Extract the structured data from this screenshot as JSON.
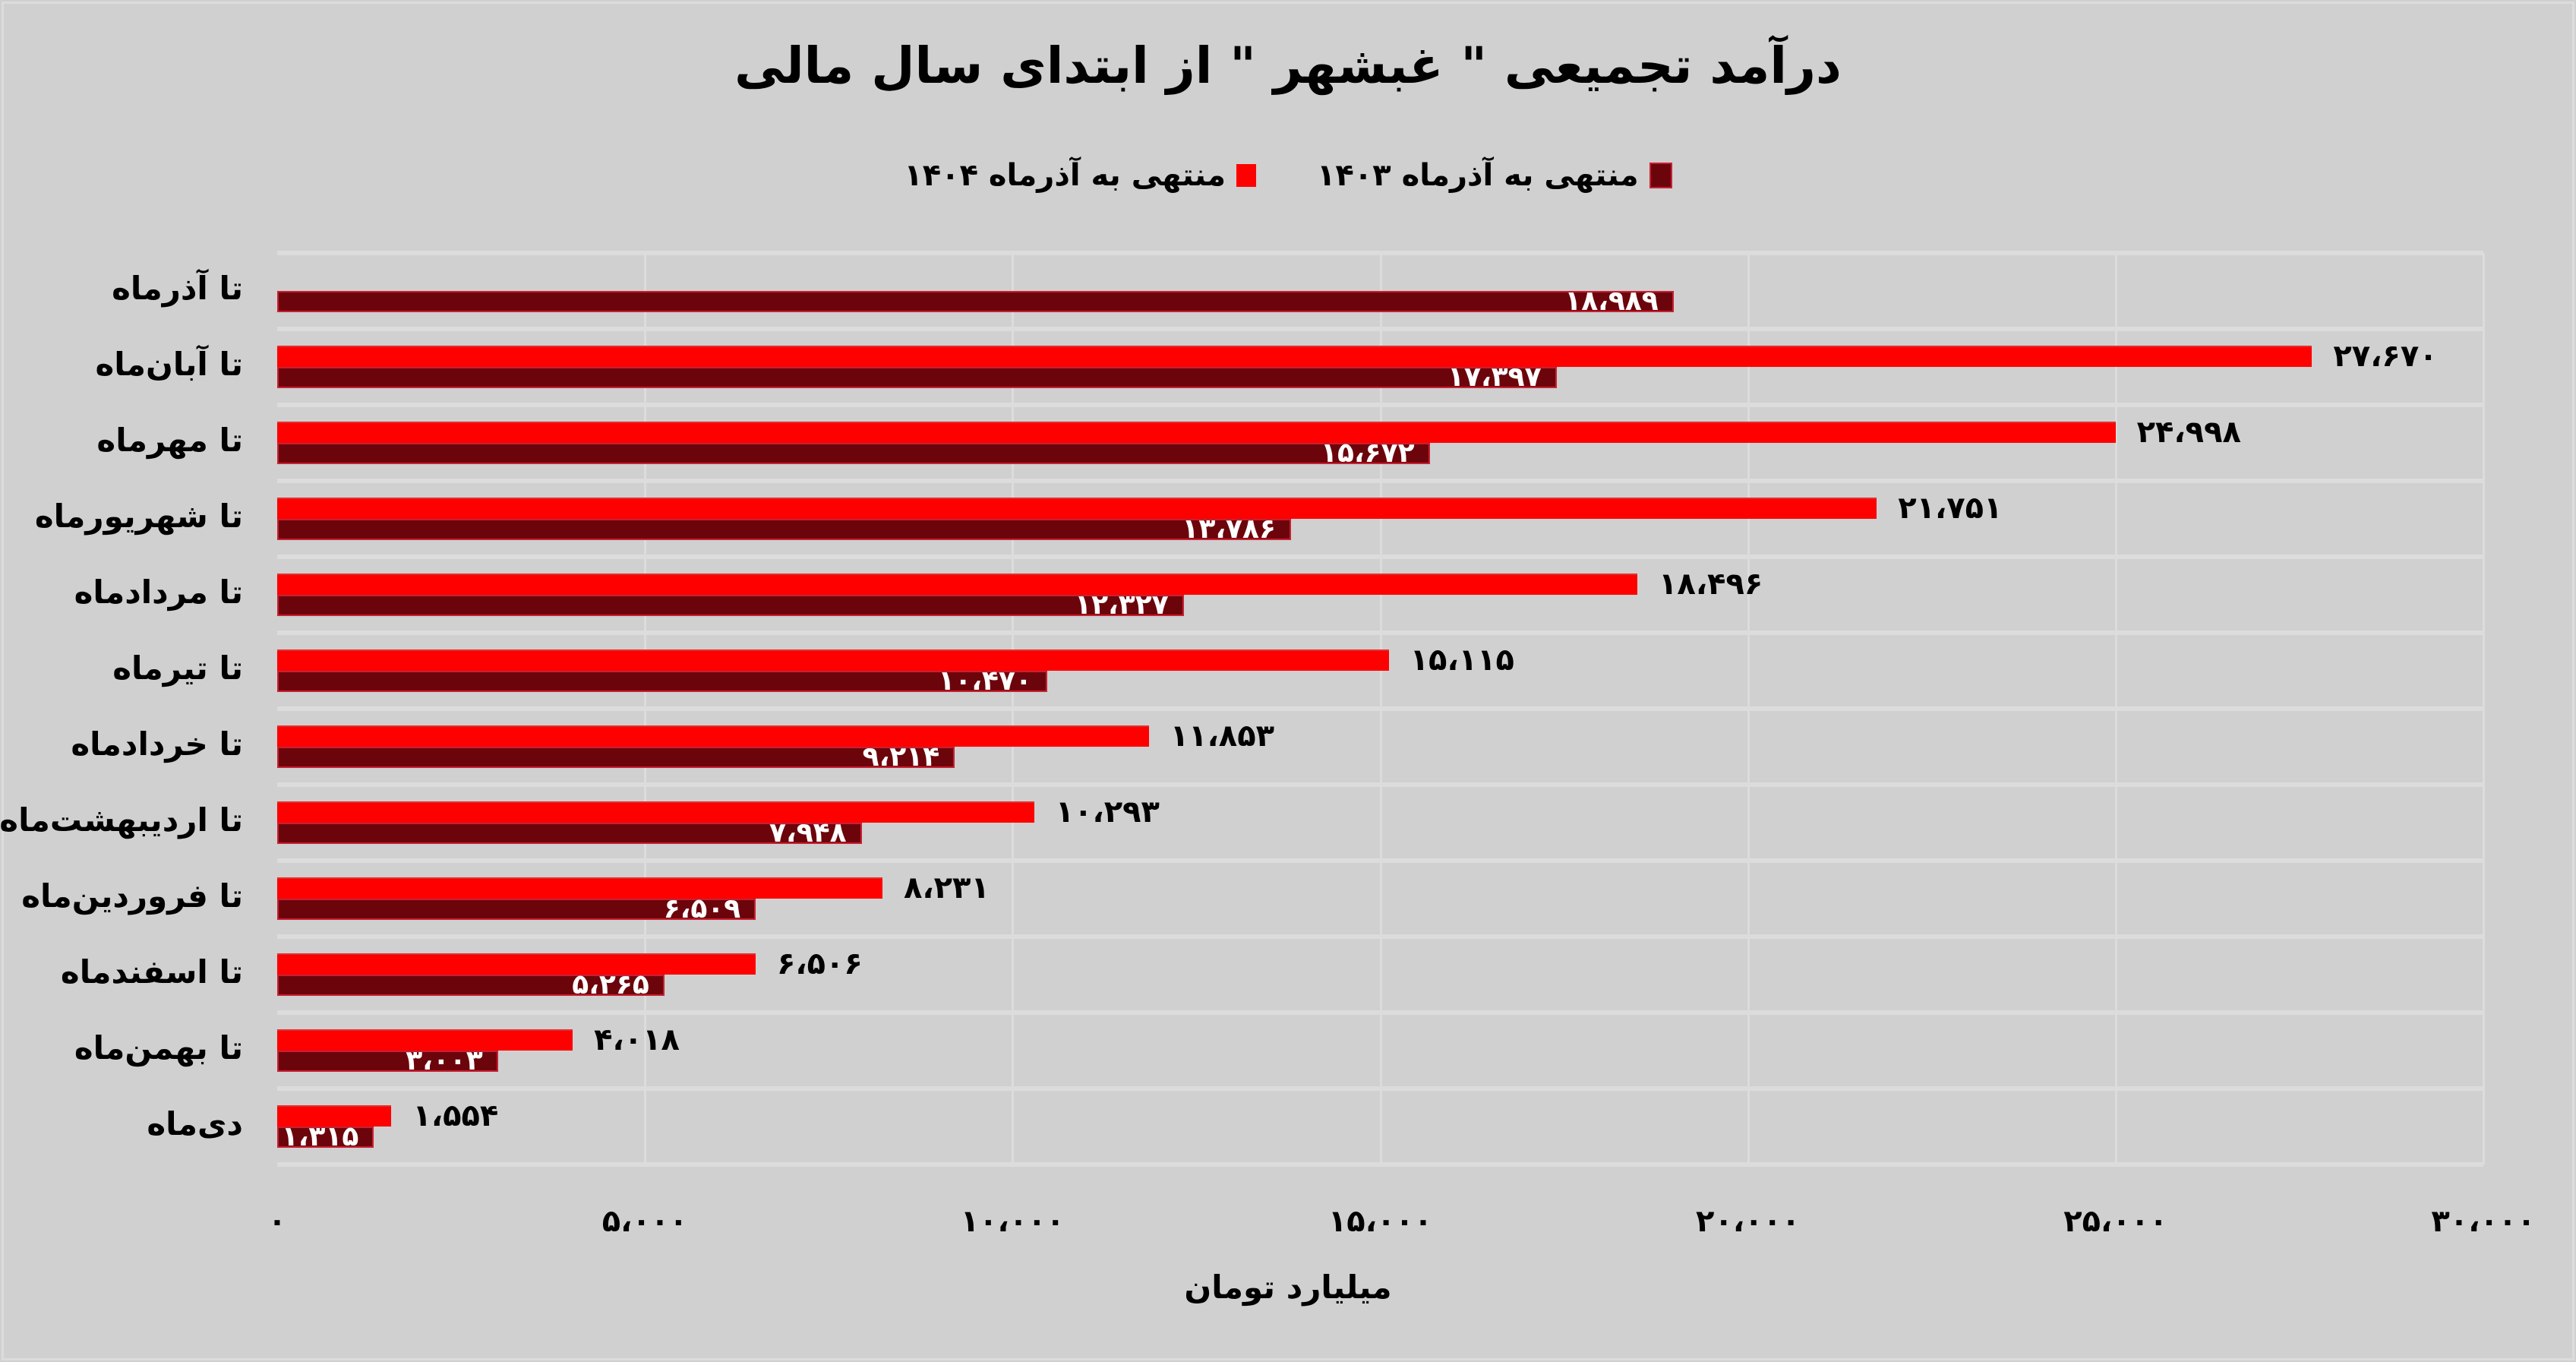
{
  "title": "درآمد تجمیعی \" غبشهر \" از ابتدای سال مالی",
  "legend": [
    {
      "label": "منتهی به آذرماه ۱۴۰۳",
      "color": "#6c050b"
    },
    {
      "label": "منتهی به آذرماه ۱۴۰۴",
      "color": "#ff0000"
    }
  ],
  "axis": {
    "x_title": "میلیارد تومان",
    "ticks": [
      "۰",
      "۵،۰۰۰",
      "۱۰،۰۰۰",
      "۱۵،۰۰۰",
      "۲۰،۰۰۰",
      "۲۵،۰۰۰",
      "۳۰،۰۰۰"
    ]
  },
  "rows": [
    {
      "category": "تا آذرماه",
      "new": null,
      "new_label": "",
      "old": 18989,
      "old_label": "۱۸،۹۸۹"
    },
    {
      "category": "تا آبان‌ماه",
      "new": 27670,
      "new_label": "۲۷،۶۷۰",
      "old": 17397,
      "old_label": "۱۷،۳۹۷"
    },
    {
      "category": "تا مهرماه",
      "new": 24998,
      "new_label": "۲۴،۹۹۸",
      "old": 15672,
      "old_label": "۱۵،۶۷۲"
    },
    {
      "category": "تا شهریورماه",
      "new": 21751,
      "new_label": "۲۱،۷۵۱",
      "old": 13786,
      "old_label": "۱۳،۷۸۶"
    },
    {
      "category": "تا مردادماه",
      "new": 18496,
      "new_label": "۱۸،۴۹۶",
      "old": 12327,
      "old_label": "۱۲،۳۲۷"
    },
    {
      "category": "تا تیرماه",
      "new": 15115,
      "new_label": "۱۵،۱۱۵",
      "old": 10470,
      "old_label": "۱۰،۴۷۰"
    },
    {
      "category": "تا خردادماه",
      "new": 11853,
      "new_label": "۱۱،۸۵۳",
      "old": 9214,
      "old_label": "۹،۲۱۴"
    },
    {
      "category": "تا اردیبهشت‌ماه",
      "new": 10293,
      "new_label": "۱۰،۲۹۳",
      "old": 7948,
      "old_label": "۷،۹۴۸"
    },
    {
      "category": "تا فروردین‌ماه",
      "new": 8231,
      "new_label": "۸،۲۳۱",
      "old": 6509,
      "old_label": "۶،۵۰۹"
    },
    {
      "category": "تا اسفندماه",
      "new": 6506,
      "new_label": "۶،۵۰۶",
      "old": 5265,
      "old_label": "۵،۲۶۵"
    },
    {
      "category": "تا بهمن‌ماه",
      "new": 4018,
      "new_label": "۴،۰۱۸",
      "old": 3003,
      "old_label": "۳،۰۰۳"
    },
    {
      "category": "دی‌ماه",
      "new": 1554,
      "new_label": "۱،۵۵۴",
      "old": 1315,
      "old_label": "۱،۳۱۵"
    }
  ],
  "chart_data": {
    "type": "bar",
    "orientation": "horizontal",
    "title": "درآمد تجمیعی \" غبشهر \" از ابتدای سال مالی",
    "xlabel": "میلیارد تومان",
    "ylabel": "",
    "xlim": [
      0,
      30000
    ],
    "grid": true,
    "legend_position": "top",
    "categories": [
      "تا آذرماه",
      "تا آبان‌ماه",
      "تا مهرماه",
      "تا شهریورماه",
      "تا مردادماه",
      "تا تیرماه",
      "تا خردادماه",
      "تا اردیبهشت‌ماه",
      "تا فروردین‌ماه",
      "تا اسفندماه",
      "تا بهمن‌ماه",
      "دی‌ماه"
    ],
    "series": [
      {
        "name": "منتهی به آذرماه ۱۴۰۴",
        "color": "#ff0000",
        "values": [
          null,
          27670,
          24998,
          21751,
          18496,
          15115,
          11853,
          10293,
          8231,
          6506,
          4018,
          1554
        ]
      },
      {
        "name": "منتهی به آذرماه ۱۴۰۳",
        "color": "#6c050b",
        "values": [
          18989,
          17397,
          15672,
          13786,
          12327,
          10470,
          9214,
          7948,
          6509,
          5265,
          3003,
          1315
        ]
      }
    ],
    "x_ticks": [
      0,
      5000,
      10000,
      15000,
      20000,
      25000,
      30000
    ]
  }
}
